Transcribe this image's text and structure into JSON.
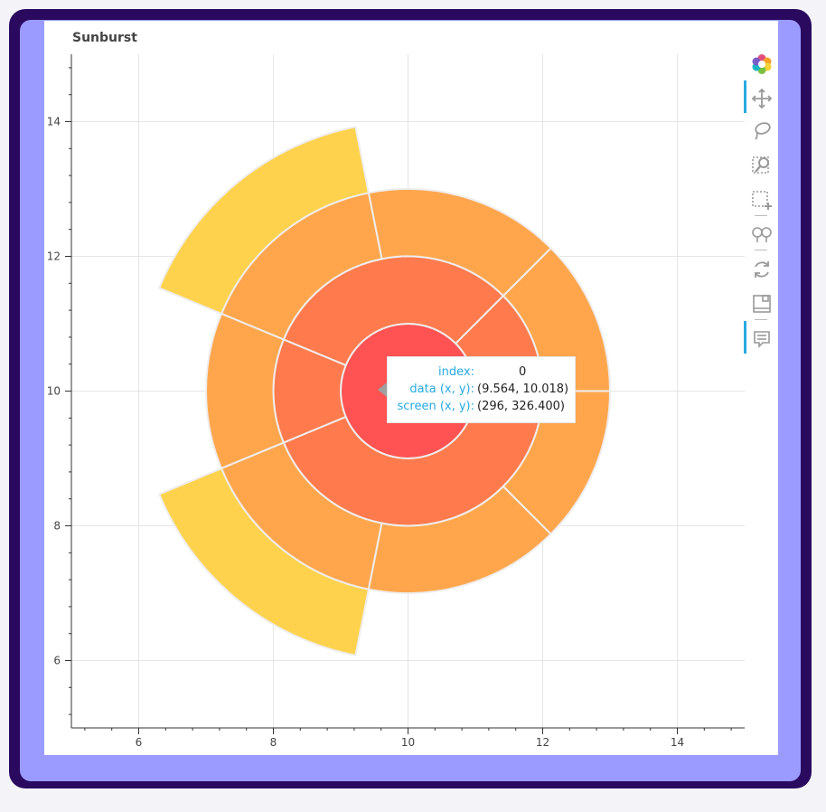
{
  "chart_data": {
    "type": "sunburst",
    "title": "Sunburst",
    "xlabel": "",
    "ylabel": "",
    "xlim": [
      5,
      15
    ],
    "ylim": [
      5,
      15
    ],
    "x_ticks": [
      6,
      8,
      10,
      12,
      14
    ],
    "y_ticks": [
      6,
      8,
      10,
      12,
      14
    ],
    "grid": true,
    "center": [
      10,
      10
    ],
    "rings": [
      {
        "r_inner": 0,
        "r_outer": 1,
        "color": "#ff5252",
        "wedges": [
          {
            "start_deg": 0,
            "end_deg": 360
          }
        ]
      },
      {
        "r_inner": 1,
        "r_outer": 2,
        "color": "#ff7a4d",
        "wedges": [
          {
            "start_deg": 0,
            "end_deg": 45
          },
          {
            "start_deg": 45,
            "end_deg": 157.5
          },
          {
            "start_deg": 157.5,
            "end_deg": 202.5
          },
          {
            "start_deg": 202.5,
            "end_deg": 360
          }
        ]
      },
      {
        "r_inner": 2,
        "r_outer": 3,
        "color": "#ffa64d",
        "wedges": [
          {
            "start_deg": 0,
            "end_deg": 45
          },
          {
            "start_deg": 45,
            "end_deg": 101.25
          },
          {
            "start_deg": 101.25,
            "end_deg": 157.5
          },
          {
            "start_deg": 157.5,
            "end_deg": 202.5
          },
          {
            "start_deg": 202.5,
            "end_deg": 258.75
          },
          {
            "start_deg": 258.75,
            "end_deg": 315
          },
          {
            "start_deg": 315,
            "end_deg": 360
          }
        ]
      },
      {
        "r_inner": 3,
        "r_outer": 4,
        "color": "#ffd24d",
        "wedges": [
          {
            "start_deg": 101.25,
            "end_deg": 157.5
          },
          {
            "start_deg": 202.5,
            "end_deg": 258.75
          }
        ]
      }
    ]
  },
  "tooltip": {
    "rows": [
      {
        "key": "index:",
        "value": "0"
      },
      {
        "key": "data (x, y):",
        "value": "(9.564, 10.018)"
      },
      {
        "key": "screen (x, y):",
        "value": "(296, 326.400)"
      }
    ]
  },
  "toolbar": {
    "tools": [
      "bokeh-logo-icon",
      "pan-icon",
      "lasso-select-icon",
      "box-zoom-icon",
      "box-select-icon",
      "zoom-in-out-icon",
      "reset-icon",
      "save-icon",
      "hover-icon"
    ],
    "active_tools": [
      "pan-icon",
      "hover-icon"
    ]
  },
  "colors": {
    "frame_outer": "#2a0a5e",
    "frame_inner": "#9b9bff",
    "accent": "#26aae1"
  }
}
